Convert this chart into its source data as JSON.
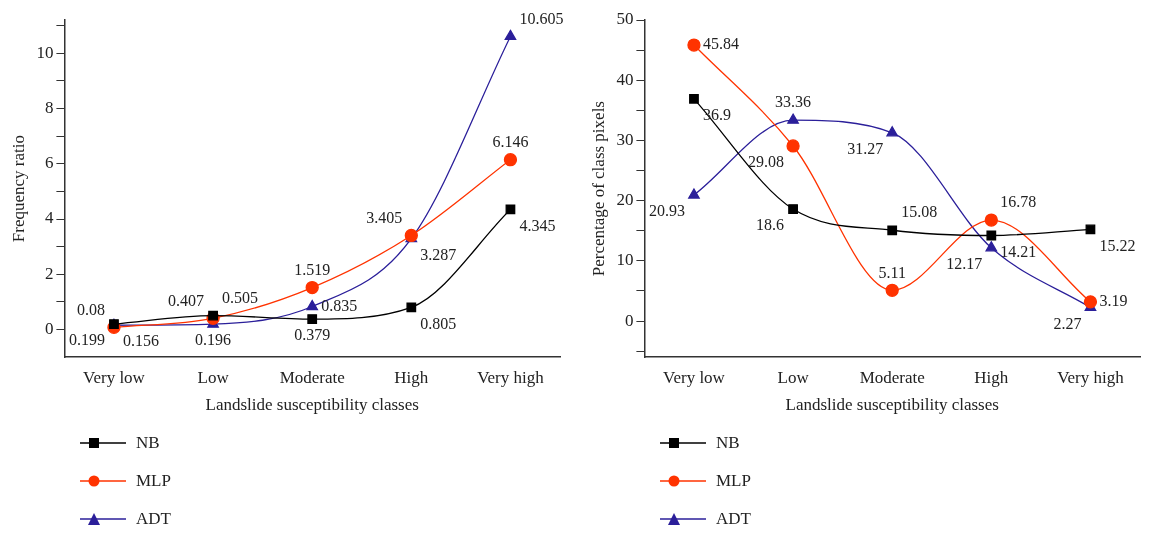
{
  "chart_data": [
    {
      "type": "line",
      "xlabel": "Landslide susceptibility classes",
      "ylabel": "Frequency ratio",
      "categories": [
        "Very low",
        "Low",
        "Moderate",
        "High",
        "Very high"
      ],
      "series": [
        {
          "name": "NB",
          "color": "#000000",
          "marker": "square",
          "values": [
            0.199,
            0.505,
            0.379,
            0.805,
            4.345
          ]
        },
        {
          "name": "MLP",
          "color": "#ff3300",
          "marker": "circle",
          "values": [
            0.08,
            0.407,
            1.519,
            3.405,
            6.146
          ]
        },
        {
          "name": "ADT",
          "color": "#2b1f9a",
          "marker": "triangle",
          "values": [
            0.156,
            0.196,
            0.835,
            3.287,
            10.605
          ]
        }
      ],
      "ylim": [
        -1,
        11.2
      ],
      "yticks": [
        0,
        {
          "value": 1,
          "label": null
        },
        2,
        {
          "value": 3,
          "label": null
        },
        4,
        {
          "value": 5,
          "label": null
        },
        6,
        {
          "value": 7,
          "label": null
        },
        8,
        {
          "value": 9,
          "label": null
        },
        10,
        {
          "value": 11,
          "label": null
        }
      ],
      "data_labels": true,
      "grid": false,
      "legend": "bottom left",
      "line_style": "solid"
    },
    {
      "type": "line",
      "xlabel": "Landslide susceptibility classes",
      "ylabel": "Percentage of class pixels",
      "categories": [
        "Very low",
        "Low",
        "Moderate",
        "High",
        "Very high"
      ],
      "series": [
        {
          "name": "NB",
          "color": "#000000",
          "marker": "square",
          "values": [
            36.9,
            18.6,
            15.08,
            14.21,
            15.22
          ]
        },
        {
          "name": "MLP",
          "color": "#ff3300",
          "marker": "circle",
          "values": [
            45.84,
            29.08,
            5.11,
            16.78,
            3.19
          ]
        },
        {
          "name": "ADT",
          "color": "#2b1f9a",
          "marker": "triangle",
          "values": [
            20.93,
            33.36,
            31.27,
            12.17,
            2.27
          ]
        }
      ],
      "ylim": [
        -6,
        50
      ],
      "yticks": [
        {
          "value": -5,
          "label": null
        },
        0,
        {
          "value": 5,
          "label": null
        },
        10,
        {
          "value": 15,
          "label": null
        },
        20,
        {
          "value": 25,
          "label": null
        },
        30,
        {
          "value": 35,
          "label": null
        },
        40,
        {
          "value": 45,
          "label": null
        },
        50
      ],
      "data_labels": true,
      "grid": false,
      "legend": "bottom left",
      "line_style": "solid"
    }
  ]
}
